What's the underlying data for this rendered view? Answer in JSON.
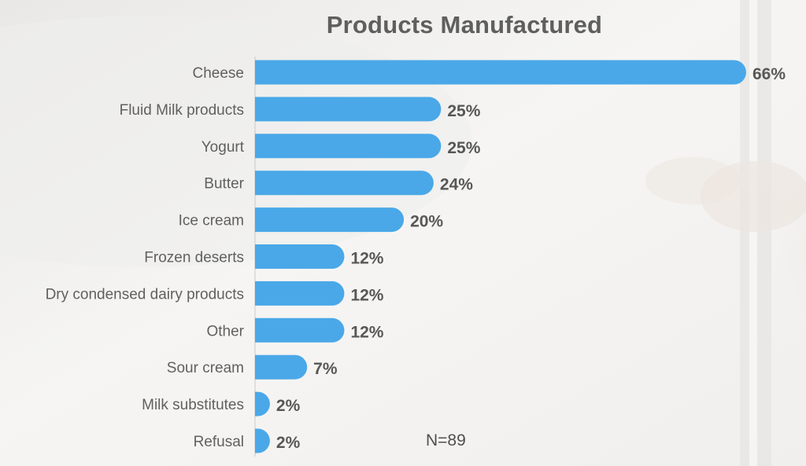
{
  "chart_data": {
    "type": "bar",
    "orientation": "horizontal",
    "title": "Products Manufactured",
    "categories": [
      "Cheese",
      "Fluid Milk products",
      "Yogurt",
      "Butter",
      "Ice cream",
      "Frozen deserts",
      "Dry condensed dairy products",
      "Other",
      "Sour cream",
      "Milk substitutes",
      "Refusal"
    ],
    "values": [
      66,
      25,
      25,
      24,
      20,
      12,
      12,
      12,
      7,
      2,
      2
    ],
    "value_labels": [
      "66%",
      "25%",
      "25%",
      "24%",
      "20%",
      "12%",
      "12%",
      "12%",
      "7%",
      "2%",
      "2%"
    ],
    "unit": "%",
    "xlim": [
      0,
      66
    ],
    "grid": false,
    "legend": "none",
    "bar_color": "#4aa8e8",
    "annotation": "N=89"
  }
}
